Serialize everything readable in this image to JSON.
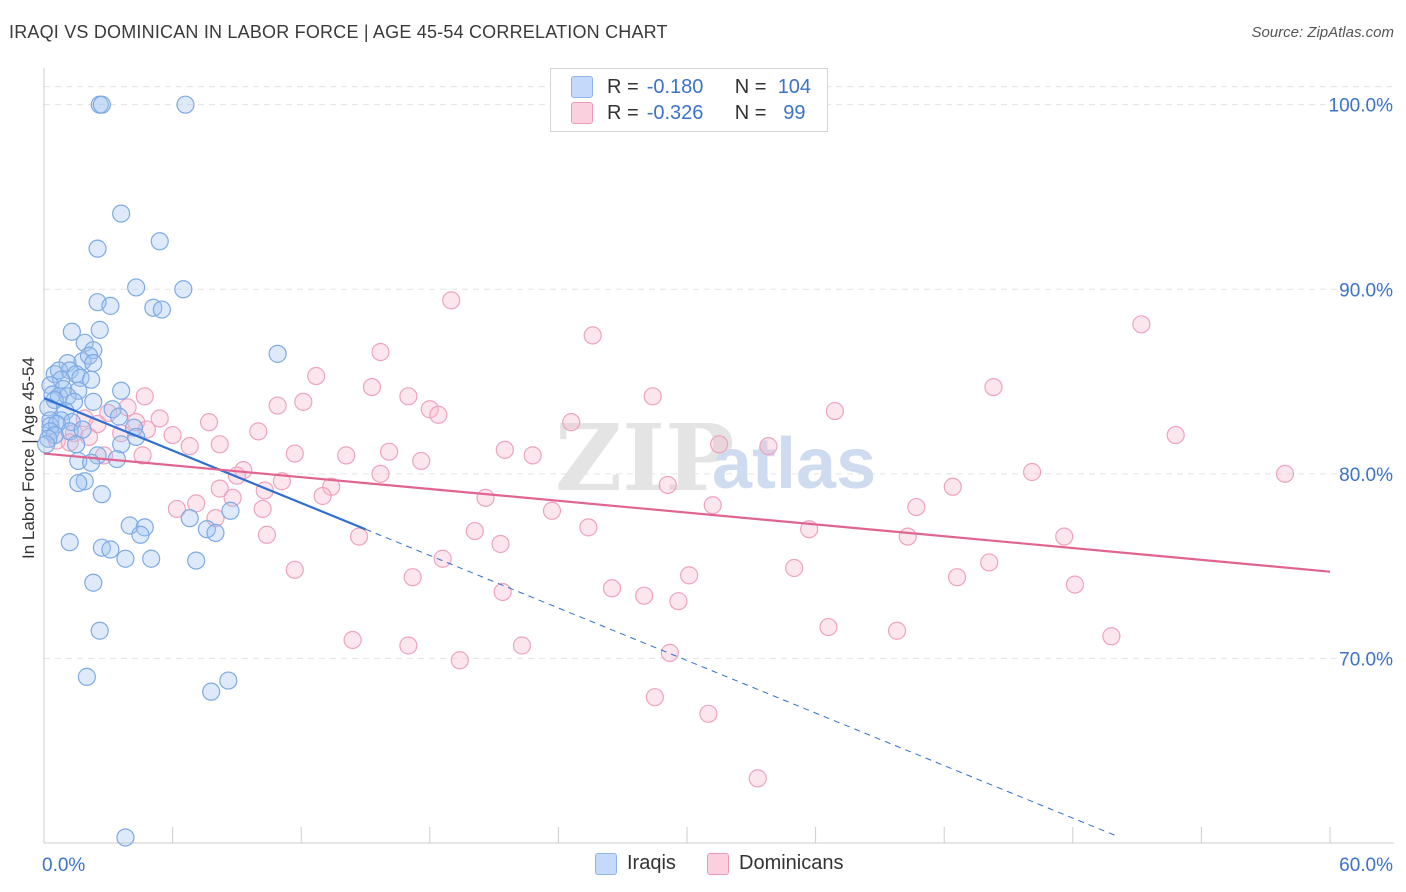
{
  "title": "IRAQI VS DOMINICAN IN LABOR FORCE | AGE 45-54 CORRELATION CHART",
  "source": "Source: ZipAtlas.com",
  "watermark": {
    "zip": "ZIP",
    "atlas": "atlas"
  },
  "legend": {
    "rows": [
      {
        "r_label": "R =",
        "r_value": "-0.180",
        "n_label": "N =",
        "n_value": "104",
        "color": "#8fb5ea",
        "fill": "#c5dafa"
      },
      {
        "r_label": "R =",
        "r_value": "-0.326",
        "n_label": "N =",
        "n_value": "99",
        "color": "#ef9bb8",
        "fill": "#fbd0de"
      }
    ]
  },
  "bottom_legend": {
    "iraqis": "Iraqis",
    "dominicans": "Dominicans"
  },
  "colors": {
    "blue": "#5a93da",
    "blue_line": "#2f6fd0",
    "pink": "#e98aac",
    "pink_line": "#e0648f",
    "axis_label": "#3b73c7",
    "grid": "#e3e3e3"
  },
  "chart_data": {
    "type": "scatter",
    "title": "IRAQI VS DOMINICAN IN LABOR FORCE | AGE 45-54 CORRELATION CHART",
    "xlabel": "",
    "ylabel": "In Labor Force | Age 45-54",
    "xlim": [
      0,
      60
    ],
    "ylim": [
      60,
      101.5
    ],
    "x_tick_labels": [
      "0.0%",
      "60.0%"
    ],
    "y_ticks": [
      70,
      80,
      90,
      100
    ],
    "y_tick_labels": [
      "70.0%",
      "80.0%",
      "90.0%",
      "100.0%"
    ],
    "series": [
      {
        "name": "Iraqis",
        "color": "#5a93da",
        "trend": {
          "x": [
            0,
            15
          ],
          "y": [
            84.1,
            77.0
          ],
          "dashed_to": [
            50,
            60.4
          ]
        },
        "points": [
          [
            2.6,
            100.0
          ],
          [
            2.7,
            100.0
          ],
          [
            6.6,
            100.0
          ],
          [
            3.6,
            94.1
          ],
          [
            5.4,
            92.6
          ],
          [
            2.5,
            92.2
          ],
          [
            4.3,
            90.1
          ],
          [
            6.5,
            90.0
          ],
          [
            2.5,
            89.3
          ],
          [
            3.1,
            89.1
          ],
          [
            5.1,
            89.0
          ],
          [
            5.5,
            88.9
          ],
          [
            1.3,
            87.7
          ],
          [
            2.6,
            87.8
          ],
          [
            1.9,
            87.1
          ],
          [
            2.3,
            86.7
          ],
          [
            10.9,
            86.5
          ],
          [
            1.1,
            86.0
          ],
          [
            1.8,
            86.1
          ],
          [
            2.1,
            86.4
          ],
          [
            2.3,
            86.0
          ],
          [
            0.5,
            85.4
          ],
          [
            0.7,
            85.6
          ],
          [
            1.2,
            85.6
          ],
          [
            1.5,
            85.4
          ],
          [
            0.8,
            85.1
          ],
          [
            1.7,
            85.2
          ],
          [
            2.2,
            85.1
          ],
          [
            0.3,
            84.8
          ],
          [
            0.9,
            84.6
          ],
          [
            1.6,
            84.5
          ],
          [
            3.6,
            84.5
          ],
          [
            0.4,
            84.3
          ],
          [
            0.7,
            84.2
          ],
          [
            1.1,
            84.2
          ],
          [
            0.5,
            84.0
          ],
          [
            1.4,
            83.9
          ],
          [
            2.3,
            83.9
          ],
          [
            0.2,
            83.6
          ],
          [
            1.0,
            83.4
          ],
          [
            3.2,
            83.5
          ],
          [
            3.5,
            83.1
          ],
          [
            0.3,
            82.9
          ],
          [
            0.8,
            82.9
          ],
          [
            1.3,
            82.8
          ],
          [
            0.3,
            82.6
          ],
          [
            0.6,
            82.7
          ],
          [
            4.2,
            82.5
          ],
          [
            0.3,
            82.3
          ],
          [
            1.2,
            82.3
          ],
          [
            1.8,
            82.4
          ],
          [
            0.5,
            82.1
          ],
          [
            0.2,
            81.9
          ],
          [
            0.1,
            81.6
          ],
          [
            1.5,
            81.6
          ],
          [
            3.6,
            81.6
          ],
          [
            4.3,
            82.0
          ],
          [
            2.5,
            81.0
          ],
          [
            3.4,
            80.8
          ],
          [
            1.6,
            80.7
          ],
          [
            2.2,
            80.6
          ],
          [
            1.9,
            79.6
          ],
          [
            1.6,
            79.5
          ],
          [
            2.7,
            78.9
          ],
          [
            8.7,
            78.0
          ],
          [
            6.8,
            77.6
          ],
          [
            4.0,
            77.2
          ],
          [
            4.7,
            77.1
          ],
          [
            4.5,
            76.7
          ],
          [
            7.6,
            77.0
          ],
          [
            8.0,
            76.8
          ],
          [
            1.2,
            76.3
          ],
          [
            2.7,
            76.0
          ],
          [
            3.1,
            75.9
          ],
          [
            3.8,
            75.4
          ],
          [
            5.0,
            75.4
          ],
          [
            7.1,
            75.3
          ],
          [
            2.3,
            74.1
          ],
          [
            2.6,
            71.5
          ],
          [
            2.0,
            69.0
          ],
          [
            8.6,
            68.8
          ],
          [
            7.8,
            68.2
          ],
          [
            3.8,
            60.3
          ]
        ]
      },
      {
        "name": "Dominicans",
        "color": "#e98aac",
        "trend": {
          "x": [
            0,
            60
          ],
          "y": [
            81.1,
            74.7
          ]
        },
        "points": [
          [
            19.0,
            89.4
          ],
          [
            51.2,
            88.1
          ],
          [
            25.6,
            87.5
          ],
          [
            15.7,
            86.6
          ],
          [
            12.7,
            85.3
          ],
          [
            15.3,
            84.7
          ],
          [
            28.4,
            84.2
          ],
          [
            44.3,
            84.7
          ],
          [
            4.7,
            84.2
          ],
          [
            17.0,
            84.2
          ],
          [
            12.1,
            83.9
          ],
          [
            10.9,
            83.7
          ],
          [
            18.0,
            83.5
          ],
          [
            18.4,
            83.2
          ],
          [
            36.9,
            83.4
          ],
          [
            3.9,
            83.6
          ],
          [
            3.0,
            83.3
          ],
          [
            1.9,
            83.0
          ],
          [
            5.4,
            83.0
          ],
          [
            2.5,
            82.7
          ],
          [
            4.3,
            82.8
          ],
          [
            7.7,
            82.8
          ],
          [
            24.6,
            82.8
          ],
          [
            4.8,
            82.4
          ],
          [
            10.0,
            82.3
          ],
          [
            1.4,
            82.2
          ],
          [
            3.6,
            82.2
          ],
          [
            6.0,
            82.1
          ],
          [
            52.8,
            82.1
          ],
          [
            2.1,
            82.0
          ],
          [
            0.6,
            81.8
          ],
          [
            1.2,
            81.7
          ],
          [
            8.2,
            81.6
          ],
          [
            6.8,
            81.5
          ],
          [
            31.5,
            81.6
          ],
          [
            33.8,
            81.5
          ],
          [
            16.1,
            81.2
          ],
          [
            21.5,
            81.3
          ],
          [
            22.8,
            81.0
          ],
          [
            11.7,
            81.1
          ],
          [
            14.1,
            81.0
          ],
          [
            4.6,
            81.0
          ],
          [
            2.8,
            81.0
          ],
          [
            17.6,
            80.7
          ],
          [
            9.3,
            80.2
          ],
          [
            15.7,
            80.0
          ],
          [
            9.0,
            79.9
          ],
          [
            11.1,
            79.6
          ],
          [
            13.4,
            79.3
          ],
          [
            42.4,
            79.3
          ],
          [
            8.2,
            79.2
          ],
          [
            10.3,
            79.1
          ],
          [
            29.1,
            79.4
          ],
          [
            46.1,
            80.1
          ],
          [
            57.9,
            80.0
          ],
          [
            20.6,
            78.7
          ],
          [
            13.0,
            78.8
          ],
          [
            8.8,
            78.7
          ],
          [
            7.1,
            78.4
          ],
          [
            6.2,
            78.1
          ],
          [
            23.7,
            78.0
          ],
          [
            31.2,
            78.3
          ],
          [
            40.7,
            78.2
          ],
          [
            10.2,
            78.1
          ],
          [
            25.4,
            77.1
          ],
          [
            35.7,
            77.0
          ],
          [
            8.0,
            77.6
          ],
          [
            20.1,
            76.9
          ],
          [
            14.7,
            76.6
          ],
          [
            10.4,
            76.7
          ],
          [
            40.3,
            76.6
          ],
          [
            47.6,
            76.6
          ],
          [
            21.3,
            76.2
          ],
          [
            18.6,
            75.4
          ],
          [
            11.7,
            74.8
          ],
          [
            35.0,
            74.9
          ],
          [
            44.1,
            75.2
          ],
          [
            17.2,
            74.4
          ],
          [
            30.1,
            74.5
          ],
          [
            42.6,
            74.4
          ],
          [
            48.1,
            74.0
          ],
          [
            26.5,
            73.8
          ],
          [
            28.0,
            73.4
          ],
          [
            21.4,
            73.6
          ],
          [
            29.6,
            73.1
          ],
          [
            36.6,
            71.7
          ],
          [
            39.8,
            71.5
          ],
          [
            14.4,
            71.0
          ],
          [
            17.0,
            70.7
          ],
          [
            22.3,
            70.7
          ],
          [
            49.8,
            71.2
          ],
          [
            19.4,
            69.9
          ],
          [
            29.2,
            70.3
          ],
          [
            28.5,
            67.9
          ],
          [
            31.0,
            67.0
          ],
          [
            33.3,
            63.5
          ]
        ]
      }
    ]
  }
}
